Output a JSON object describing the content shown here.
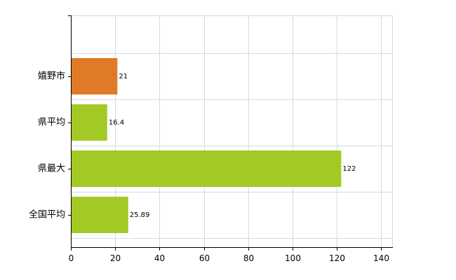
{
  "chart_data": {
    "type": "bar",
    "orientation": "horizontal",
    "categories": [
      "嬉野市",
      "県平均",
      "県最大",
      "全国平均"
    ],
    "values": [
      21,
      16.4,
      122,
      25.89
    ],
    "value_labels": [
      "21",
      "16.4",
      "122",
      "25.89"
    ],
    "bar_colors": [
      "#e07a26",
      "#a3c925",
      "#a3c925",
      "#a3c925"
    ],
    "xlim": [
      0,
      145
    ],
    "x_ticks": [
      0,
      20,
      40,
      60,
      80,
      100,
      120,
      140
    ],
    "grid": true,
    "title": "",
    "xlabel": "",
    "ylabel": ""
  }
}
